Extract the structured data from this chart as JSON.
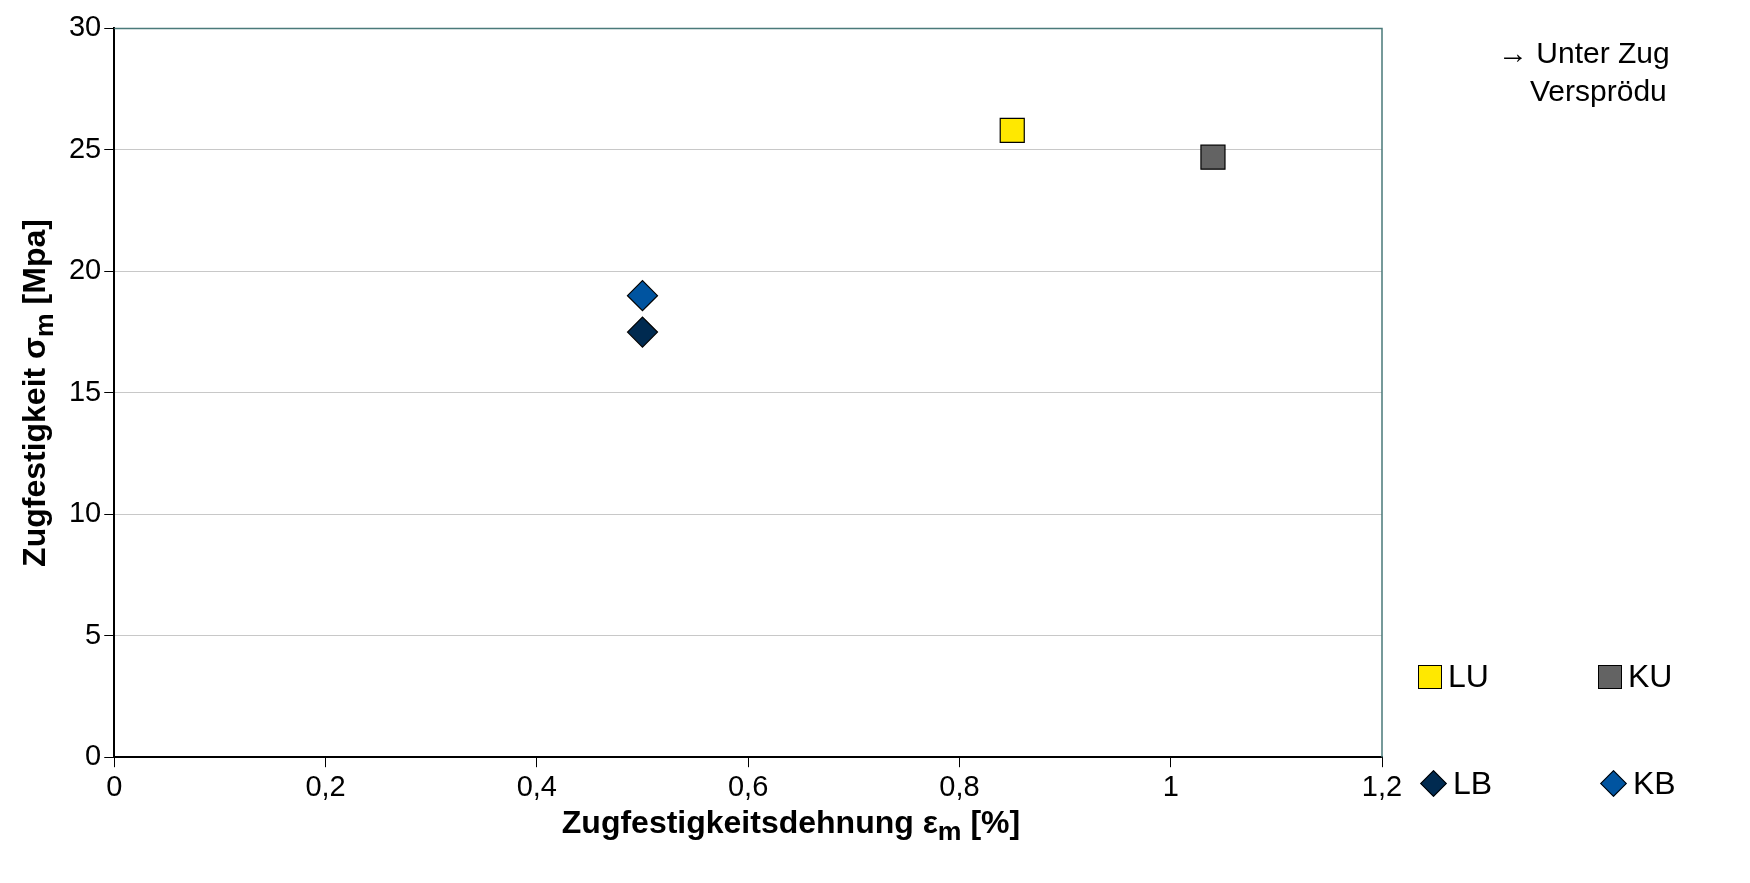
{
  "chart_data": {
    "type": "scatter",
    "xlabel": "Zugfestigkeitsdehnung ε$_{m}$ [%]",
    "ylabel": "Zugfestigkeit σ$_{m}$ [Mpa]",
    "annotations": [
      "→ Unter Zug",
      "Versprödu"
    ],
    "xlim": [
      0,
      1.2
    ],
    "xticks": [
      0,
      {
        "value": 0.2,
        "label": "0,2"
      },
      {
        "value": 0.4,
        "label": "0,4"
      },
      {
        "value": 0.6,
        "label": "0,6"
      },
      {
        "value": 0.8,
        "label": "0,8"
      },
      1,
      {
        "value": 1.2,
        "label": "1,2"
      }
    ],
    "ylim": [
      0,
      30
    ],
    "yticks": [
      0,
      5,
      10,
      15,
      20,
      25,
      30
    ],
    "grid": "y",
    "legend": "right",
    "series": [
      {
        "name": "LU",
        "color": "#ffe800",
        "marker": "square",
        "x": [
          0.85
        ],
        "values": [
          25.8
        ]
      },
      {
        "name": "KU",
        "color": "#636363",
        "marker": "square",
        "x": [
          1.04
        ],
        "values": [
          24.7
        ]
      },
      {
        "name": "LB",
        "color": "#002a50",
        "marker": "diamond",
        "x": [
          0.5
        ],
        "values": [
          17.5
        ]
      },
      {
        "name": "KB",
        "color": "#0054a0",
        "marker": "diamond",
        "x": [
          0.5
        ],
        "values": [
          19.0
        ]
      }
    ]
  }
}
